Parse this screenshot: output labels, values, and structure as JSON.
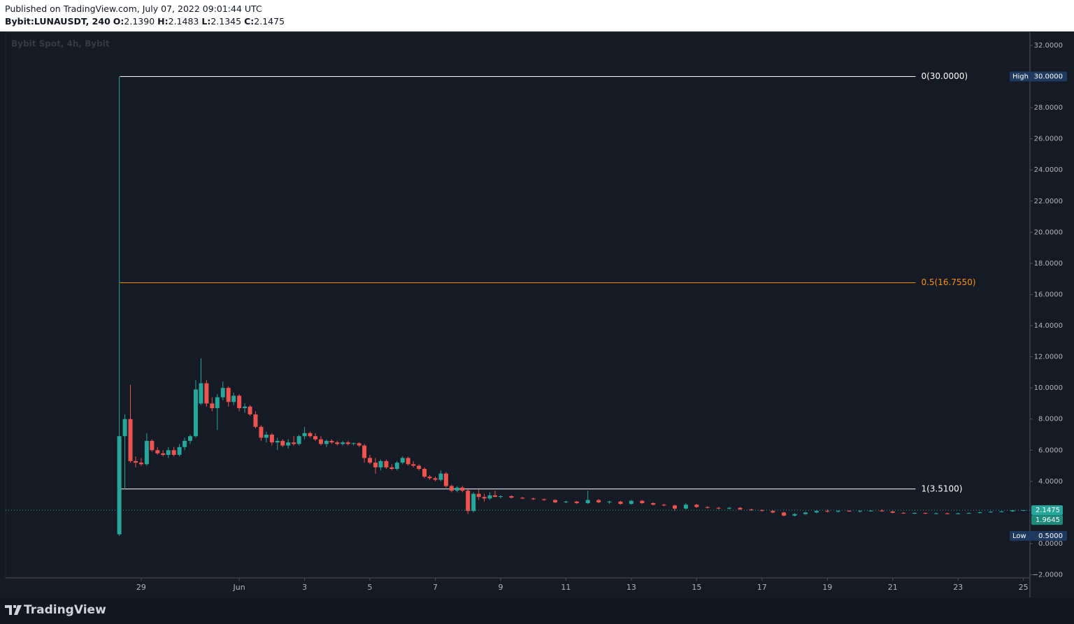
{
  "header": {
    "published": "Published on TradingView.com, July 07, 2022 09:01:44 UTC"
  },
  "footer": {
    "logo": "TradingView"
  },
  "chart_data": {
    "type": "candlestick",
    "title": "Bybit:LUNAUSDT, 240",
    "legend_values": [
      {
        "name": "O:",
        "value": 2.139,
        "value_label": "2.1390"
      },
      {
        "name": "H:",
        "value": 2.1483,
        "value_label": "2.1483"
      },
      {
        "name": "L:",
        "value": 2.1345,
        "value_label": "2.1345"
      },
      {
        "name": "C:",
        "value": 2.1475,
        "value_label": "2.1475"
      }
    ],
    "watermark": "Bybit Spot, 4h, Bybit",
    "up_color": "#26a69a",
    "down_color": "#ef5350",
    "xlim": [
      24.85,
      56.2
    ],
    "ylim": [
      -2.2,
      32.85
    ],
    "xticks": [
      29,
      {
        "value": 32,
        "label": "Jun"
      },
      {
        "value": 34,
        "label": "3"
      },
      {
        "value": 36,
        "label": "5"
      },
      {
        "value": 38,
        "label": "7"
      },
      {
        "value": 40,
        "label": "9"
      },
      {
        "value": 42,
        "label": "11"
      },
      {
        "value": 44,
        "label": "13"
      },
      {
        "value": 46,
        "label": "15"
      },
      {
        "value": 48,
        "label": "17"
      },
      {
        "value": 50,
        "label": "19"
      },
      {
        "value": 52,
        "label": "21"
      },
      {
        "value": 54,
        "label": "23"
      },
      {
        "value": 56,
        "label": "25"
      }
    ],
    "yticks": [
      {
        "value": 32,
        "label": "32.0000"
      },
      {
        "value": 28,
        "label": "28.0000"
      },
      {
        "value": 26,
        "label": "26.0000"
      },
      {
        "value": 24,
        "label": "24.0000"
      },
      {
        "value": 22,
        "label": "22.0000"
      },
      {
        "value": 20,
        "label": "20.0000"
      },
      {
        "value": 18,
        "label": "18.0000"
      },
      {
        "value": 16,
        "label": "16.0000"
      },
      {
        "value": 14,
        "label": "14.0000"
      },
      {
        "value": 12,
        "label": "12.0000"
      },
      {
        "value": 10,
        "label": "10.0000"
      },
      {
        "value": 8,
        "label": "8.0000"
      },
      {
        "value": 6,
        "label": "6.0000"
      },
      {
        "value": 4,
        "label": "4.0000"
      },
      {
        "value": 0,
        "label": "0.0000"
      },
      {
        "value": -2,
        "label": "−2.0000"
      }
    ],
    "grid": false,
    "fib_x": [
      28.35,
      52.7
    ],
    "fib_levels": [
      {
        "price": 30,
        "label": "0(30.0000)",
        "color": "#ffffff"
      },
      {
        "price": 16.755,
        "label": "0.5(16.7550)",
        "color": "#f7931a"
      },
      {
        "price": 3.51,
        "label": "1(3.5100)",
        "color": "#ffffff"
      }
    ],
    "price_labels": [
      {
        "name": "High",
        "value": 30,
        "value_label": "30.0000",
        "color": "#1e3a5f"
      },
      {
        "name": "Low",
        "value": 0.5,
        "value_label": "0.5000",
        "color": "#1e3a5f"
      },
      {
        "value": 2.1475,
        "value_label": "2.1475",
        "color": "#26a69a",
        "line": true
      },
      {
        "value": 1.9645,
        "value_label": "1.9645",
        "color": "#1f8a7c"
      }
    ],
    "x": [
      28.33,
      28.5,
      28.67,
      28.83,
      29,
      29.17,
      29.33,
      29.5,
      29.67,
      29.83,
      30,
      30.17,
      30.33,
      30.5,
      30.67,
      30.83,
      31,
      31.17,
      31.33,
      31.5,
      31.67,
      31.83,
      32,
      32.17,
      32.33,
      32.5,
      32.67,
      32.83,
      33,
      33.17,
      33.33,
      33.5,
      33.67,
      33.83,
      34,
      34.17,
      34.33,
      34.5,
      34.67,
      34.83,
      35,
      35.17,
      35.33,
      35.5,
      35.67,
      35.83,
      36,
      36.17,
      36.33,
      36.5,
      36.67,
      36.83,
      37,
      37.17,
      37.33,
      37.5,
      37.67,
      37.83,
      38,
      38.17,
      38.33,
      38.5,
      38.67,
      38.83,
      39,
      39.17,
      39.33,
      39.5,
      39.67,
      39.83,
      40,
      40.33,
      40.67,
      41,
      41.33,
      41.67,
      42,
      42.33,
      42.67,
      43,
      43.33,
      43.67,
      44,
      44.33,
      44.67,
      45,
      45.33,
      45.67,
      46,
      46.33,
      46.67,
      47,
      47.33,
      47.67,
      48,
      48.33,
      48.67,
      49,
      49.33,
      49.67,
      50,
      50.33,
      50.67,
      51,
      51.33,
      51.67,
      52,
      52.33,
      52.67,
      53,
      53.33,
      53.67,
      54,
      54.33,
      54.67,
      55,
      55.33,
      55.67,
      56
    ],
    "ohlc": [
      [
        0.6,
        30,
        0.5,
        6.9
      ],
      [
        6.9,
        8.3,
        3.5,
        8.0
      ],
      [
        8.0,
        10.2,
        5.2,
        5.3
      ],
      [
        5.3,
        5.6,
        4.9,
        5.2
      ],
      [
        5.2,
        5.5,
        5.0,
        5.1
      ],
      [
        5.1,
        7.1,
        5.0,
        6.6
      ],
      [
        6.6,
        6.7,
        5.9,
        6.0
      ],
      [
        6.0,
        6.2,
        5.7,
        5.8
      ],
      [
        5.8,
        6.0,
        5.6,
        5.7
      ],
      [
        5.7,
        6.2,
        5.5,
        6.0
      ],
      [
        6.0,
        6.2,
        5.6,
        5.7
      ],
      [
        5.7,
        6.4,
        5.6,
        6.2
      ],
      [
        6.2,
        6.8,
        6.0,
        6.6
      ],
      [
        6.6,
        7.0,
        6.4,
        6.9
      ],
      [
        6.9,
        10.5,
        6.8,
        9.9
      ],
      [
        9.0,
        11.9,
        8.9,
        10.3
      ],
      [
        10.3,
        10.5,
        8.8,
        9.0
      ],
      [
        9.0,
        9.4,
        8.5,
        8.7
      ],
      [
        8.7,
        9.6,
        7.3,
        9.4
      ],
      [
        9.4,
        10.4,
        9.2,
        10.0
      ],
      [
        10.0,
        10.1,
        8.8,
        9.1
      ],
      [
        9.1,
        9.7,
        8.9,
        9.5
      ],
      [
        9.5,
        9.6,
        8.5,
        8.7
      ],
      [
        8.7,
        9.0,
        8.4,
        8.8
      ],
      [
        8.8,
        8.9,
        8.2,
        8.3
      ],
      [
        8.3,
        8.5,
        7.4,
        7.5
      ],
      [
        7.5,
        7.6,
        6.6,
        6.8
      ],
      [
        6.8,
        7.2,
        6.5,
        7.0
      ],
      [
        7.0,
        7.1,
        6.3,
        6.5
      ],
      [
        6.5,
        6.8,
        6.0,
        6.6
      ],
      [
        6.6,
        6.7,
        6.2,
        6.3
      ],
      [
        6.3,
        6.7,
        6.1,
        6.5
      ],
      [
        6.5,
        6.9,
        6.3,
        6.4
      ],
      [
        6.4,
        7.0,
        6.3,
        6.9
      ],
      [
        6.9,
        7.5,
        6.7,
        7.1
      ],
      [
        7.1,
        7.2,
        6.8,
        6.9
      ],
      [
        6.9,
        7.1,
        6.6,
        6.7
      ],
      [
        6.7,
        6.9,
        6.3,
        6.4
      ],
      [
        6.4,
        6.7,
        6.2,
        6.6
      ],
      [
        6.6,
        6.7,
        6.4,
        6.5
      ],
      [
        6.5,
        6.6,
        6.3,
        6.4
      ],
      [
        6.4,
        6.6,
        6.3,
        6.5
      ],
      [
        6.5,
        6.6,
        6.3,
        6.4
      ],
      [
        6.4,
        6.5,
        6.3,
        6.45
      ],
      [
        6.45,
        6.5,
        6.2,
        6.3
      ],
      [
        6.3,
        6.4,
        5.2,
        5.5
      ],
      [
        5.5,
        5.7,
        5.1,
        5.2
      ],
      [
        5.2,
        5.5,
        4.5,
        4.9
      ],
      [
        4.9,
        5.4,
        4.7,
        5.3
      ],
      [
        5.3,
        5.4,
        4.8,
        4.9
      ],
      [
        4.9,
        5.1,
        4.7,
        4.8
      ],
      [
        4.8,
        5.3,
        4.7,
        5.2
      ],
      [
        5.2,
        5.6,
        5.1,
        5.5
      ],
      [
        5.5,
        5.6,
        5.0,
        5.1
      ],
      [
        5.1,
        5.3,
        4.9,
        5.0
      ],
      [
        5.0,
        5.1,
        4.7,
        4.8
      ],
      [
        4.8,
        4.9,
        4.2,
        4.3
      ],
      [
        4.3,
        4.4,
        4.1,
        4.2
      ],
      [
        4.2,
        4.3,
        4.0,
        4.1
      ],
      [
        4.1,
        4.7,
        4.0,
        4.5
      ],
      [
        4.5,
        4.6,
        3.6,
        3.7
      ],
      [
        3.7,
        3.8,
        3.3,
        3.4
      ],
      [
        3.4,
        3.7,
        3.3,
        3.6
      ],
      [
        3.6,
        3.7,
        3.3,
        3.4
      ],
      [
        3.4,
        3.5,
        1.9,
        2.1
      ],
      [
        2.1,
        3.3,
        2.0,
        3.2
      ],
      [
        3.2,
        3.5,
        2.8,
        3.0
      ],
      [
        3.0,
        3.2,
        2.7,
        2.9
      ],
      [
        2.9,
        3.3,
        2.8,
        3.1
      ],
      [
        3.1,
        3.4,
        3.0,
        3.0
      ],
      [
        3.0,
        3.1,
        2.9,
        3.05
      ],
      [
        3.05,
        3.1,
        2.9,
        2.95
      ],
      [
        2.95,
        3.0,
        2.85,
        2.9
      ],
      [
        2.9,
        2.95,
        2.8,
        2.85
      ],
      [
        2.85,
        2.9,
        2.75,
        2.8
      ],
      [
        2.8,
        2.85,
        2.6,
        2.65
      ],
      [
        2.65,
        2.75,
        2.6,
        2.7
      ],
      [
        2.7,
        2.75,
        2.55,
        2.6
      ],
      [
        2.6,
        3.4,
        2.55,
        2.8
      ],
      [
        2.8,
        2.85,
        2.6,
        2.65
      ],
      [
        2.65,
        2.75,
        2.55,
        2.7
      ],
      [
        2.7,
        2.75,
        2.5,
        2.55
      ],
      [
        2.55,
        2.8,
        2.5,
        2.75
      ],
      [
        2.75,
        2.8,
        2.55,
        2.6
      ],
      [
        2.6,
        2.65,
        2.45,
        2.5
      ],
      [
        2.5,
        2.55,
        2.4,
        2.45
      ],
      [
        2.45,
        2.5,
        2.1,
        2.25
      ],
      [
        2.25,
        2.6,
        2.2,
        2.5
      ],
      [
        2.5,
        2.55,
        2.3,
        2.35
      ],
      [
        2.35,
        2.4,
        2.25,
        2.3
      ],
      [
        2.3,
        2.35,
        2.2,
        2.25
      ],
      [
        2.25,
        2.35,
        2.2,
        2.3
      ],
      [
        2.3,
        2.35,
        2.15,
        2.2
      ],
      [
        2.2,
        2.25,
        2.1,
        2.15
      ],
      [
        2.15,
        2.2,
        2.05,
        2.1
      ],
      [
        2.1,
        2.15,
        1.95,
        2.0
      ],
      [
        2.0,
        2.05,
        1.75,
        1.8
      ],
      [
        1.8,
        1.95,
        1.75,
        1.9
      ],
      [
        1.9,
        2.05,
        1.85,
        2.0
      ],
      [
        2.0,
        2.15,
        1.95,
        2.1
      ],
      [
        2.1,
        2.2,
        2.0,
        2.05
      ],
      [
        2.05,
        2.15,
        2.0,
        2.1
      ],
      [
        2.1,
        2.15,
        2.05,
        2.08
      ],
      [
        2.08,
        2.15,
        2.0,
        2.1
      ],
      [
        2.1,
        2.15,
        2.05,
        2.12
      ],
      [
        2.12,
        2.2,
        2.05,
        2.07
      ],
      [
        2.07,
        2.1,
        1.95,
        1.98
      ],
      [
        1.98,
        2.02,
        1.92,
        1.95
      ],
      [
        1.95,
        2.0,
        1.9,
        1.97
      ],
      [
        1.97,
        2.0,
        1.9,
        1.93
      ],
      [
        1.93,
        1.98,
        1.88,
        1.95
      ],
      [
        1.95,
        1.98,
        1.88,
        1.9
      ],
      [
        1.9,
        1.98,
        1.87,
        1.95
      ],
      [
        1.95,
        2.0,
        1.92,
        1.97
      ],
      [
        1.97,
        2.05,
        1.94,
        2.02
      ],
      [
        2.02,
        2.08,
        1.98,
        2.05
      ],
      [
        2.05,
        2.1,
        2.0,
        2.07
      ],
      [
        2.07,
        2.15,
        2.04,
        2.139
      ],
      [
        2.139,
        2.1483,
        2.1345,
        2.1475
      ]
    ]
  }
}
